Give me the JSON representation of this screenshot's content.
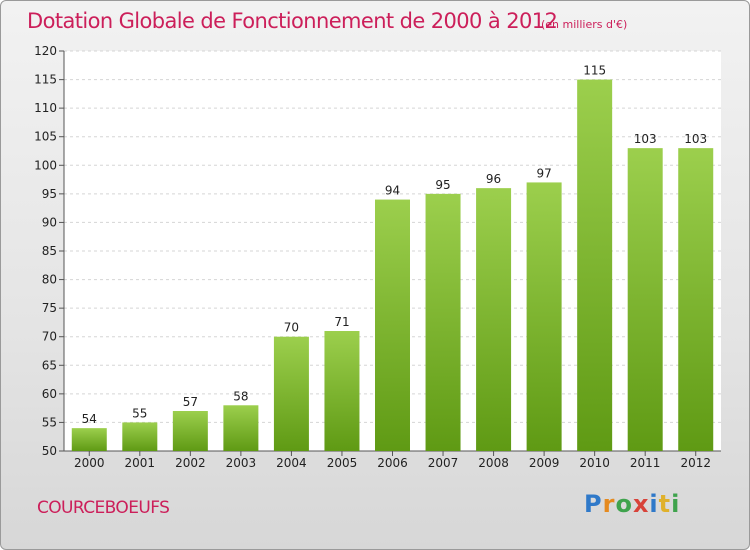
{
  "header": {
    "title": "Dotation Globale de Fonctionnement de 2000 à 2012",
    "subtitle": "(en milliers d'€)"
  },
  "footer": {
    "place": "COURCEBOEUFS",
    "logo": [
      "P",
      "r",
      "o",
      "x",
      "i",
      "t",
      "i"
    ]
  },
  "chart_data": {
    "type": "bar",
    "title": "Dotation Globale de Fonctionnement de 2000 à 2012",
    "subtitle": "(en milliers d'€)",
    "categories": [
      "2000",
      "2001",
      "2002",
      "2003",
      "2004",
      "2005",
      "2006",
      "2007",
      "2008",
      "2009",
      "2010",
      "2011",
      "2012"
    ],
    "values": [
      54,
      55,
      57,
      58,
      70,
      71,
      94,
      95,
      96,
      97,
      115,
      103,
      103
    ],
    "ylim": [
      50,
      120
    ],
    "yticks": [
      50,
      55,
      60,
      65,
      70,
      75,
      80,
      85,
      90,
      95,
      100,
      105,
      110,
      115,
      120
    ],
    "grid": true,
    "bar_color": "#7dba2f",
    "data_labels": true
  }
}
